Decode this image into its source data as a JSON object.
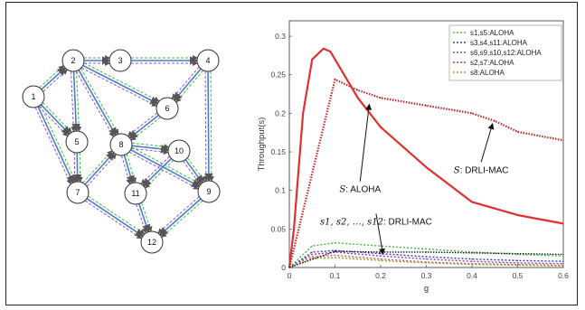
{
  "network": {
    "nodes": [
      {
        "id": "1",
        "label": "1"
      },
      {
        "id": "2",
        "label": "2"
      },
      {
        "id": "3",
        "label": "3"
      },
      {
        "id": "4",
        "label": "4"
      },
      {
        "id": "5",
        "label": "5"
      },
      {
        "id": "6",
        "label": "6"
      },
      {
        "id": "7",
        "label": "7"
      },
      {
        "id": "8",
        "label": "8"
      },
      {
        "id": "9",
        "label": "9"
      },
      {
        "id": "10",
        "label": "10"
      },
      {
        "id": "11",
        "label": "11"
      },
      {
        "id": "12",
        "label": "12"
      }
    ],
    "edges": [
      [
        "1",
        "2"
      ],
      [
        "1",
        "5"
      ],
      [
        "1",
        "7"
      ],
      [
        "2",
        "3"
      ],
      [
        "2",
        "5"
      ],
      [
        "2",
        "8"
      ],
      [
        "2",
        "6"
      ],
      [
        "3",
        "4"
      ],
      [
        "4",
        "6"
      ],
      [
        "4",
        "9"
      ],
      [
        "5",
        "7"
      ],
      [
        "6",
        "8"
      ],
      [
        "7",
        "8"
      ],
      [
        "8",
        "10"
      ],
      [
        "8",
        "11"
      ],
      [
        "8",
        "9"
      ],
      [
        "10",
        "11"
      ],
      [
        "10",
        "9"
      ],
      [
        "11",
        "12"
      ],
      [
        "7",
        "12"
      ],
      [
        "9",
        "12"
      ]
    ],
    "colors": {
      "blue": "#4a7fd0",
      "green": "#3fbf3f",
      "purple": "#9d4fc4"
    }
  },
  "chart_data": {
    "type": "line",
    "xlabel": "g",
    "ylabel": "Throughput(s)",
    "xlim": [
      0,
      0.6
    ],
    "ylim": [
      0,
      0.32
    ],
    "xticks": [
      0,
      0.1,
      0.2,
      0.3,
      0.4,
      0.5,
      0.6
    ],
    "xtick_labels": [
      "0",
      "0.1",
      "0.2",
      "0.3",
      "0.4",
      "0.5",
      "0.6"
    ],
    "yticks": [
      0,
      0.05,
      0.1,
      0.15,
      0.2,
      0.25,
      0.3
    ],
    "ytick_labels": [
      "0",
      "0.05",
      "0.1",
      "0.15",
      "0.2",
      "0.25",
      "0.3"
    ],
    "grid": false,
    "legend_position": "top-right",
    "legend": [
      {
        "label": "s1,s5:ALOHA",
        "color": "#40c040",
        "dash": "2,2"
      },
      {
        "label": "s3,s4,s11:ALOHA",
        "color": "#2f3fb0",
        "dash": "2,2"
      },
      {
        "label": "s6,s9,s10,s12:ALOHA",
        "color": "#9040c0",
        "dash": "2,2"
      },
      {
        "label": "s2,s7:ALOHA",
        "color": "#e03030",
        "dash": "2,2"
      },
      {
        "label": "s8:ALOHA",
        "color": "#a0a030",
        "dash": "2,2"
      }
    ],
    "series": [
      {
        "name": "S: ALOHA",
        "color": "#e03030",
        "dash": "",
        "x": [
          0,
          0.01,
          0.03,
          0.05,
          0.075,
          0.09,
          0.1,
          0.15,
          0.2,
          0.3,
          0.4,
          0.5,
          0.6
        ],
        "y": [
          0,
          0.05,
          0.2,
          0.27,
          0.284,
          0.28,
          0.27,
          0.22,
          0.182,
          0.13,
          0.085,
          0.068,
          0.057
        ]
      },
      {
        "name": "S: DRLI-MAC",
        "color": "#c82828",
        "dash": "1.5,1.5",
        "x": [
          0,
          0.1,
          0.15,
          0.2,
          0.3,
          0.4,
          0.45,
          0.5,
          0.6
        ],
        "y": [
          0,
          0.244,
          0.23,
          0.22,
          0.21,
          0.2,
          0.19,
          0.176,
          0.165
        ]
      },
      {
        "name": "s1,s5:ALOHA",
        "color": "#40c040",
        "dash": "2,2",
        "x": [
          0,
          0.05,
          0.1,
          0.2,
          0.3,
          0.4,
          0.5,
          0.6
        ],
        "y": [
          0,
          0.028,
          0.032,
          0.028,
          0.024,
          0.02,
          0.017,
          0.015
        ]
      },
      {
        "name": "s3,s4,s11:ALOHA",
        "color": "#2f3fb0",
        "dash": "2,2",
        "x": [
          0,
          0.05,
          0.1,
          0.2,
          0.3,
          0.4,
          0.5,
          0.6
        ],
        "y": [
          0,
          0.02,
          0.022,
          0.018,
          0.014,
          0.011,
          0.009,
          0.008
        ]
      },
      {
        "name": "s6,s9,s10,s12:ALOHA",
        "color": "#9040c0",
        "dash": "2,2",
        "x": [
          0,
          0.05,
          0.1,
          0.2,
          0.3,
          0.4,
          0.5,
          0.6
        ],
        "y": [
          0,
          0.017,
          0.02,
          0.015,
          0.011,
          0.008,
          0.006,
          0.005
        ]
      },
      {
        "name": "s2,s7:ALOHA",
        "color": "#e06060",
        "dash": "2,2",
        "x": [
          0,
          0.05,
          0.1,
          0.2,
          0.3,
          0.4,
          0.5,
          0.6
        ],
        "y": [
          0,
          0.014,
          0.016,
          0.011,
          0.007,
          0.005,
          0.004,
          0.003
        ]
      },
      {
        "name": "s8:ALOHA",
        "color": "#a0a030",
        "dash": "2,2",
        "x": [
          0,
          0.05,
          0.1,
          0.2,
          0.3,
          0.4,
          0.5,
          0.6
        ],
        "y": [
          0,
          0.012,
          0.013,
          0.009,
          0.006,
          0.004,
          0.003,
          0.002
        ]
      },
      {
        "name": "s1,...,s12: DRLI-MAC",
        "color": "#111111",
        "dash": "1.5,1.5",
        "x": [
          0,
          0.1,
          0.2,
          0.3,
          0.4,
          0.5,
          0.6
        ],
        "y": [
          0,
          0.021,
          0.02,
          0.02,
          0.019,
          0.018,
          0.017
        ]
      }
    ],
    "annotations": [
      {
        "label": "ALOHA",
        "prefix": "S",
        "target": [
          0.175,
          0.215
        ],
        "text_at": [
          0.155,
          0.1
        ]
      },
      {
        "label": "DRLI-MAC",
        "prefix": "S",
        "target": [
          0.445,
          0.19
        ],
        "text_at": [
          0.42,
          0.125
        ]
      },
      {
        "label": "DRLI-MAC",
        "prefix": "s1, s2, …, s12",
        "target": [
          0.205,
          0.021
        ],
        "text_at": [
          0.19,
          0.058
        ]
      }
    ]
  }
}
